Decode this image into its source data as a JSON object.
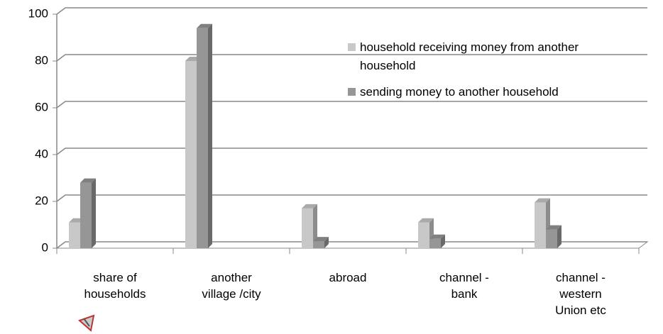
{
  "chart_data": {
    "type": "bar",
    "categories": [
      "share of households",
      "another village /city",
      "abroad",
      "channel - bank",
      "channel - western Union etc"
    ],
    "series": [
      {
        "name": "household receiving money from another  household",
        "color": "#c8c8c8",
        "values": [
          11,
          80,
          17,
          11,
          19.5
        ]
      },
      {
        "name": "sending money to another household",
        "color": "#969696",
        "values": [
          28,
          94,
          3,
          4,
          8
        ]
      }
    ],
    "ylim": [
      0,
      100
    ],
    "yticks": [
      0,
      20,
      40,
      60,
      80,
      100
    ],
    "grid": true,
    "legend": "upper right"
  }
}
